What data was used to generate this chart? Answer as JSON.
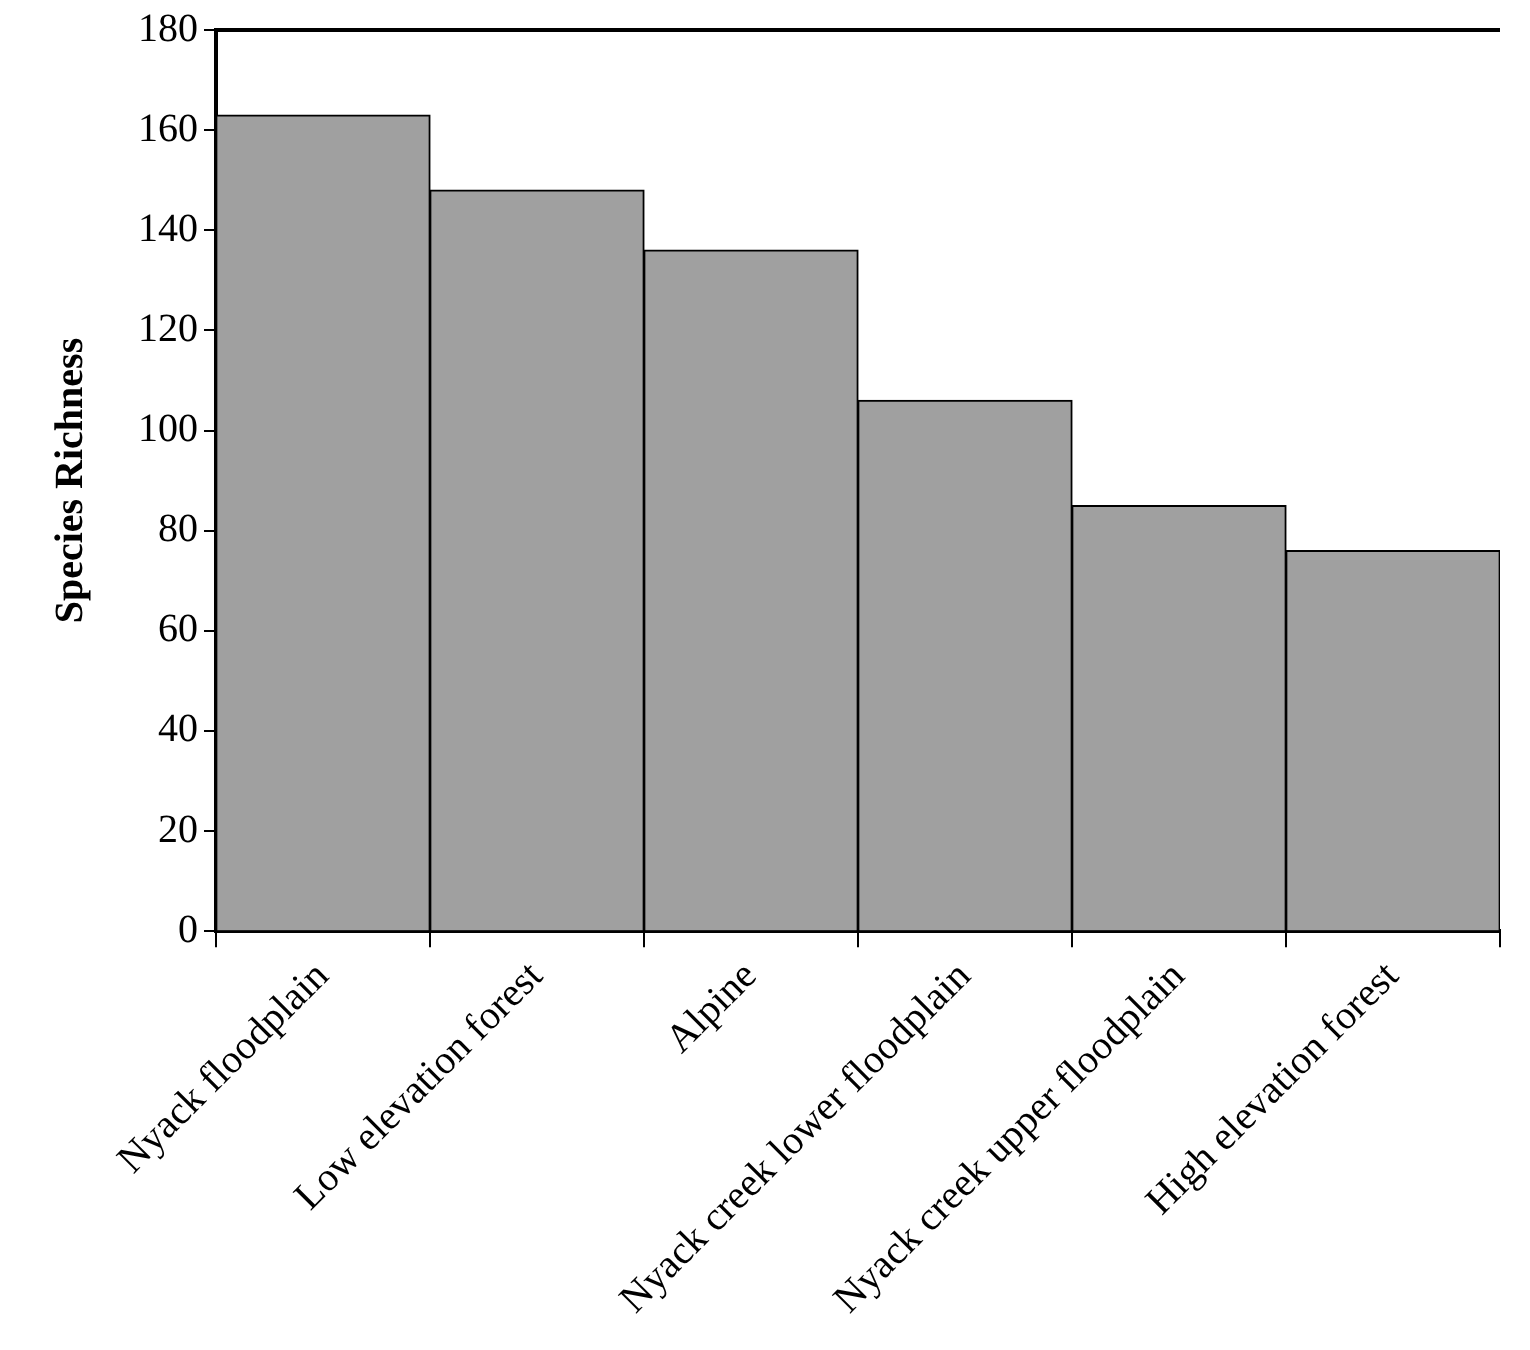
{
  "chart_data": {
    "type": "bar",
    "ylabel": "Species Richness",
    "categories": [
      "Nyack floodplain",
      "Low elevation forest",
      "Alpine",
      "Nyack creek lower floodplain",
      "Nyack creek upper floodplain",
      "High elevation forest"
    ],
    "values": [
      163,
      148,
      136,
      106,
      85,
      76
    ],
    "color": "#a0a0a0",
    "ylim": [
      0,
      180
    ],
    "yticks": [
      0,
      20,
      40,
      60,
      80,
      100,
      120,
      140,
      160,
      180
    ],
    "grid": false,
    "legend": false
  }
}
